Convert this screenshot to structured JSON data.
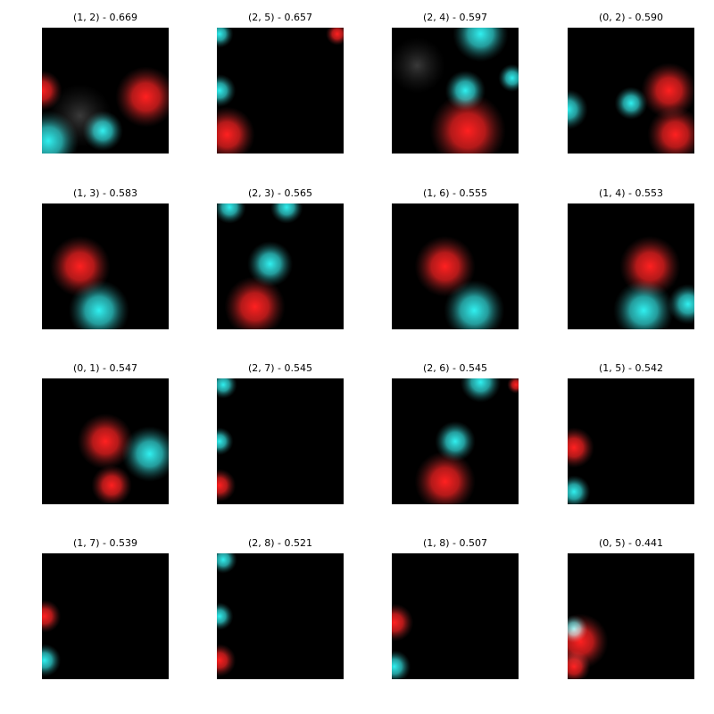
{
  "panels": [
    {
      "title": "(1, 2) - 0.669"
    },
    {
      "title": "(2, 5) - 0.657"
    },
    {
      "title": "(2, 4) - 0.597"
    },
    {
      "title": "(0, 2) - 0.590"
    },
    {
      "title": "(1, 3) - 0.583"
    },
    {
      "title": "(2, 3) - 0.565"
    },
    {
      "title": "(1, 6) - 0.555"
    },
    {
      "title": "(1, 4) - 0.553"
    },
    {
      "title": "(0, 1) - 0.547"
    },
    {
      "title": "(2, 7) - 0.545"
    },
    {
      "title": "(2, 6) - 0.545"
    },
    {
      "title": "(1, 5) - 0.542"
    },
    {
      "title": "(1, 7) - 0.539"
    },
    {
      "title": "(2, 8) - 0.521"
    },
    {
      "title": "(1, 8) - 0.507"
    },
    {
      "title": "(0, 5) - 0.441"
    }
  ]
}
